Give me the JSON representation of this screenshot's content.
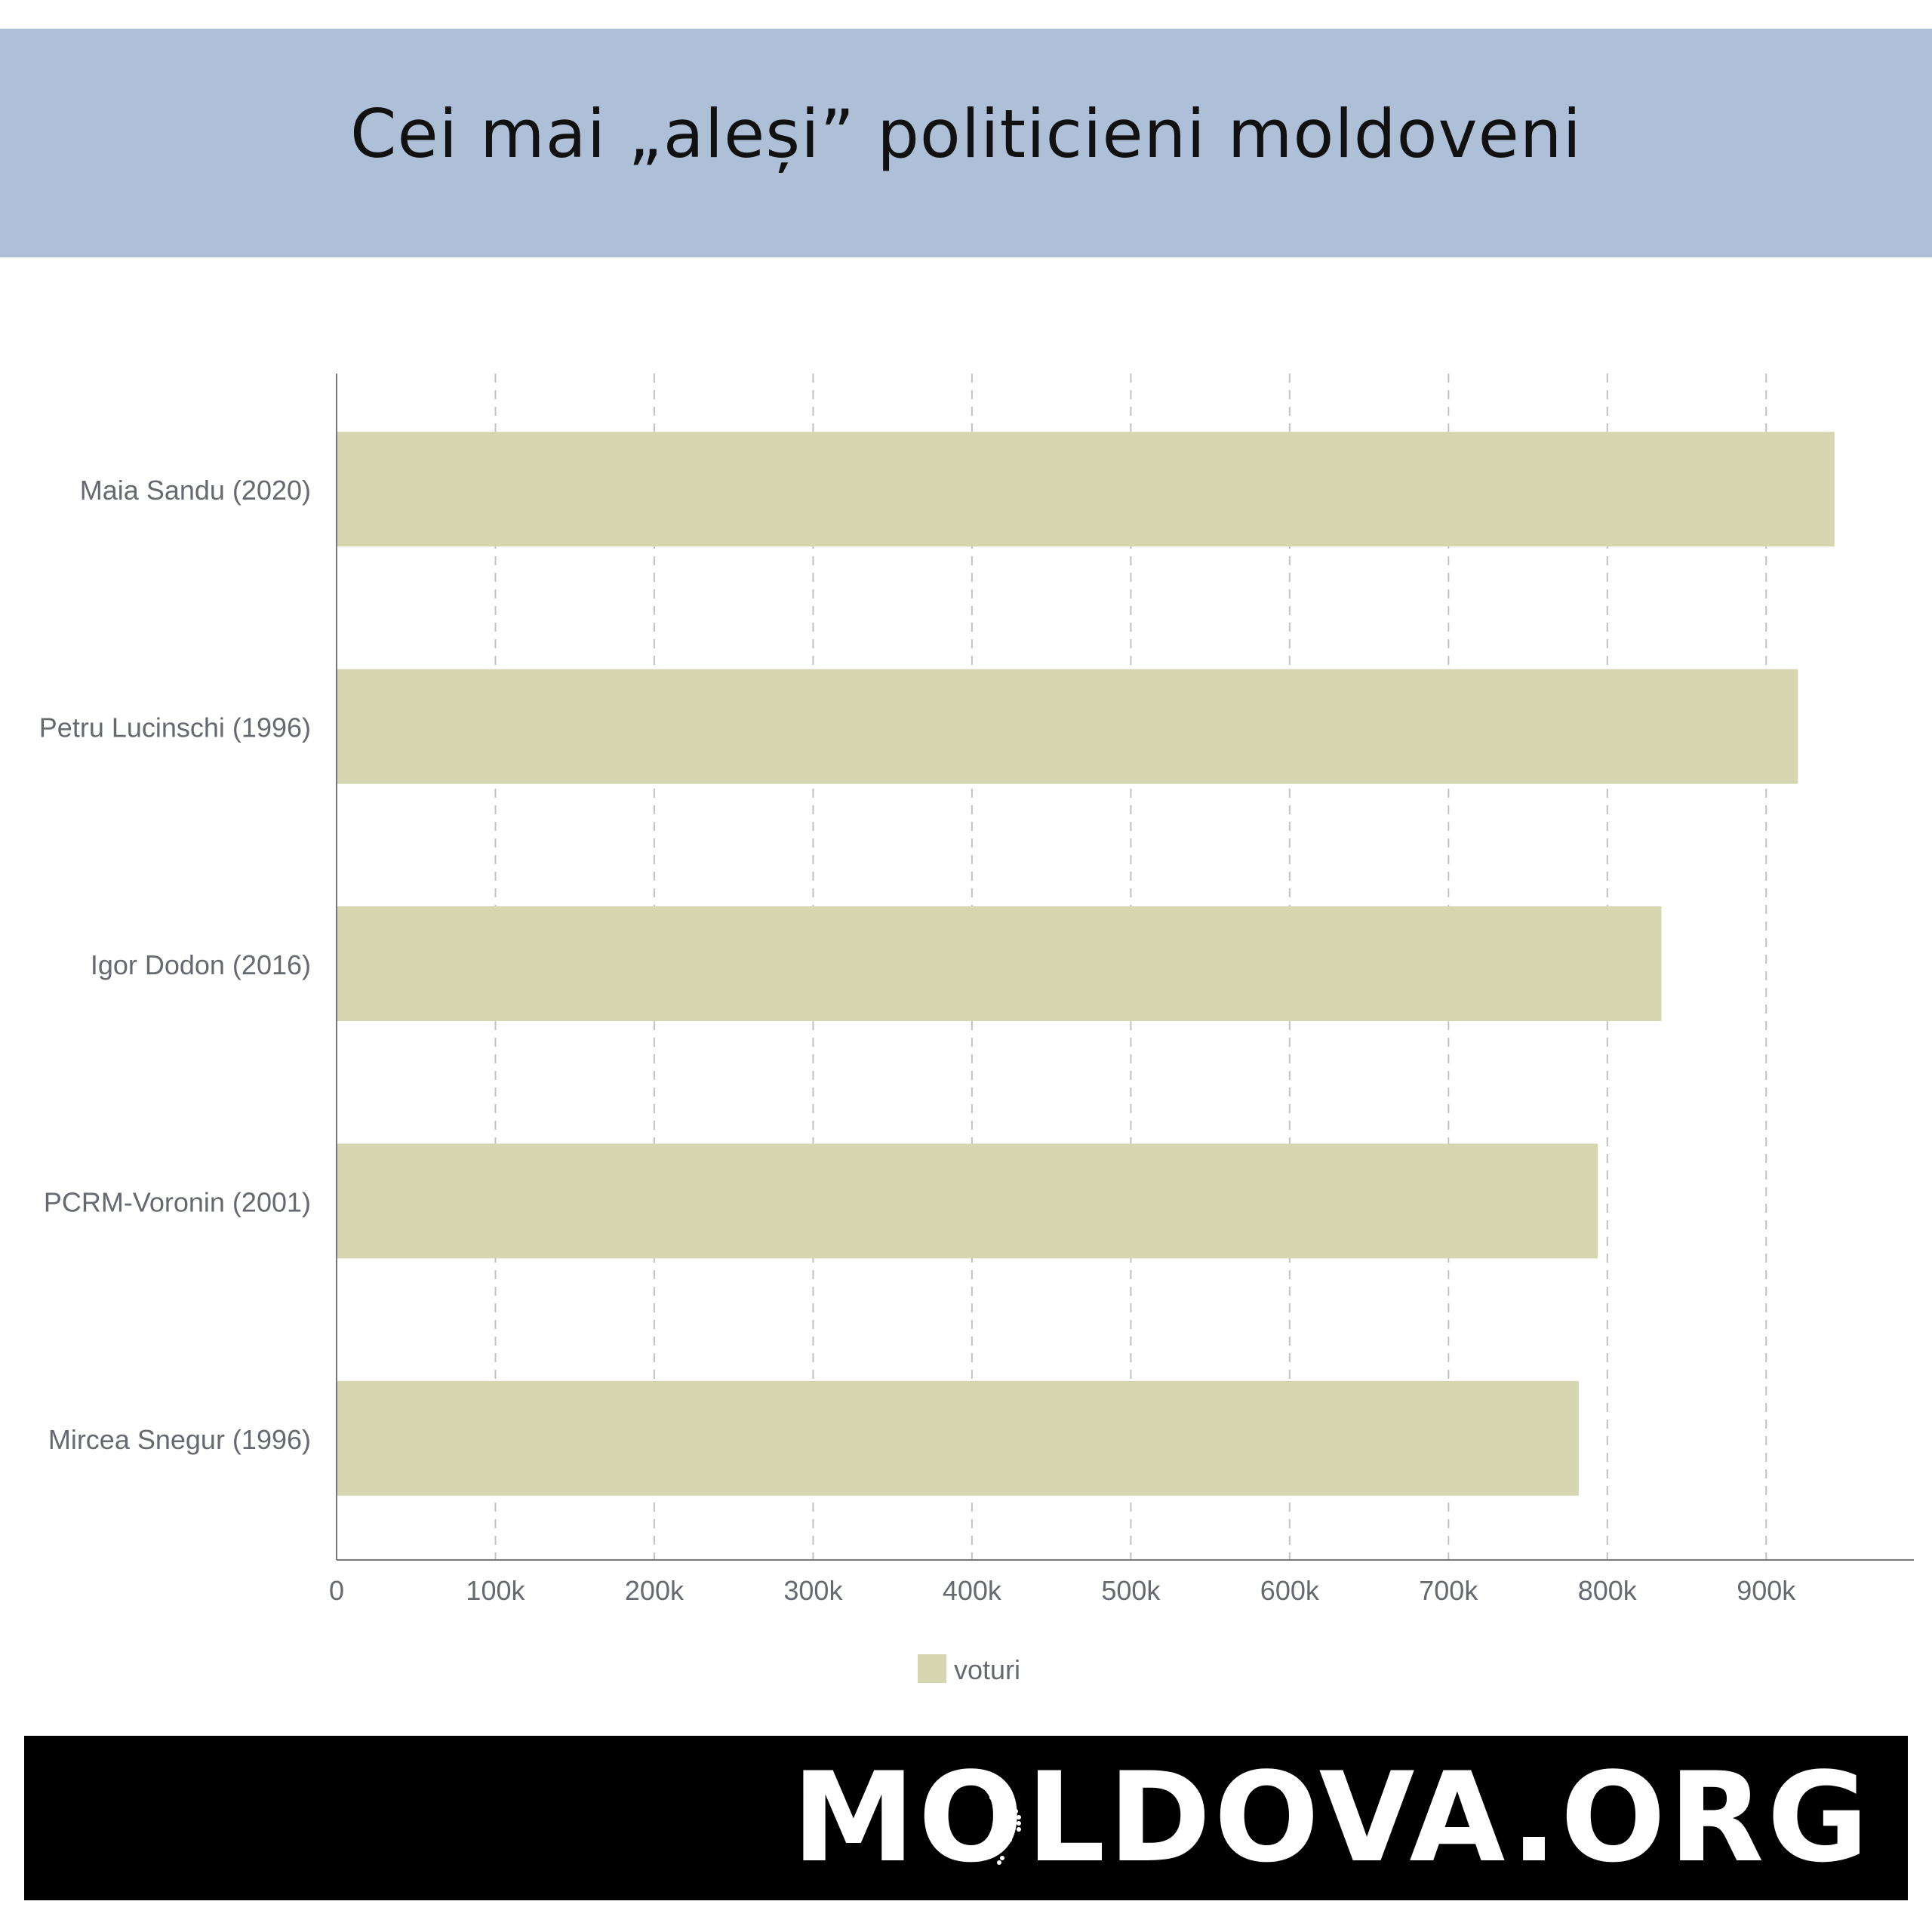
{
  "header": {
    "title": "Cei mai „aleși” politicieni moldoveni"
  },
  "chart_data": {
    "type": "bar",
    "orientation": "horizontal",
    "categories": [
      "Maia Sandu (2020)",
      "Petru Lucinschi (1996)",
      "Igor Dodon (2016)",
      "PCRM-Voronin (2001)",
      "Mircea Snegur (1996)"
    ],
    "series": [
      {
        "name": "voturi",
        "values": [
          943000,
          920000,
          834000,
          794000,
          782000
        ],
        "color": "#d6d7b1"
      }
    ],
    "xlim": [
      0,
      993000
    ],
    "x_ticks": [
      0,
      100000,
      200000,
      300000,
      400000,
      500000,
      600000,
      700000,
      800000,
      900000
    ],
    "x_tick_labels": [
      "0",
      "100k",
      "200k",
      "300k",
      "400k",
      "500k",
      "600k",
      "700k",
      "800k",
      "900k"
    ],
    "grid": true,
    "legend": "bottom-center",
    "axis_color": "#777777",
    "label_color": "#666a70"
  },
  "footer": {
    "logo_text": "MOLDOVA.ORG",
    "logo_icon": "moldova-map-icon"
  }
}
